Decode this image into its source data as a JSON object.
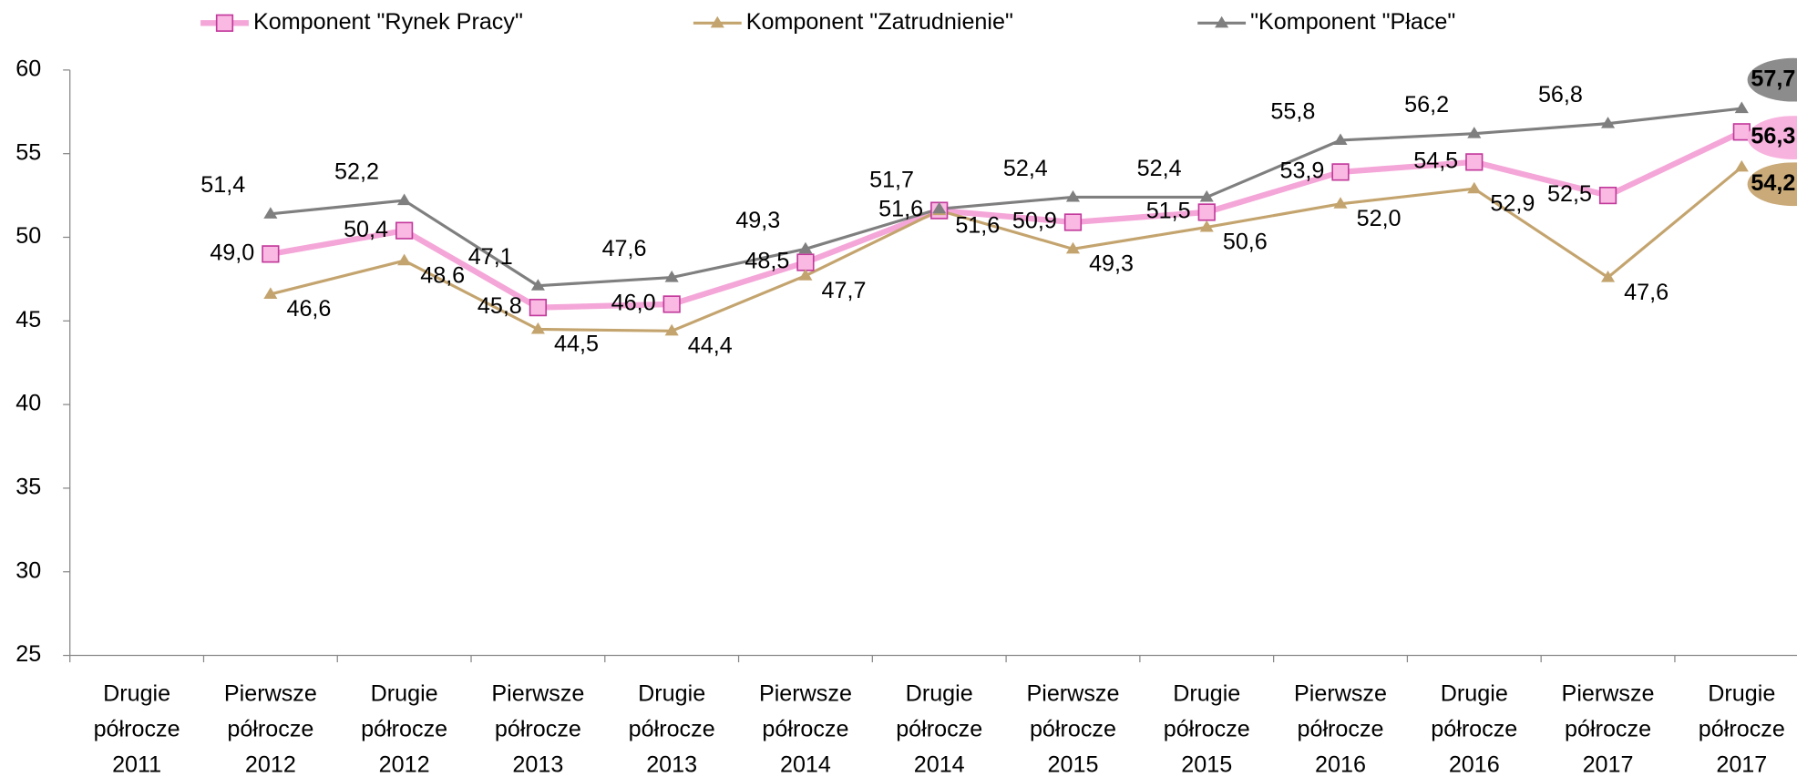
{
  "chart_data": {
    "type": "line",
    "categories": [
      [
        "Drugie",
        "półrocze",
        "2011"
      ],
      [
        "Pierwsze",
        "półrocze",
        "2012"
      ],
      [
        "Drugie",
        "półrocze",
        "2012"
      ],
      [
        "Pierwsze",
        "półrocze",
        "2013"
      ],
      [
        "Drugie",
        "półrocze",
        "2013"
      ],
      [
        "Pierwsze",
        "półrocze",
        "2014"
      ],
      [
        "Drugie",
        "półrocze",
        "2014"
      ],
      [
        "Pierwsze",
        "półrocze",
        "2015"
      ],
      [
        "Drugie",
        "półrocze",
        "2015"
      ],
      [
        "Pierwsze",
        "półrocze",
        "2016"
      ],
      [
        "Drugie",
        "półrocze",
        "2016"
      ],
      [
        "Pierwsze",
        "półrocze",
        "2017"
      ],
      [
        "Drugie",
        "półrocze",
        "2017"
      ]
    ],
    "series": [
      {
        "name": "Komponent \"Rynek Pracy\"",
        "color": "#f4a6d8",
        "marker": "square",
        "values": [
          null,
          49.0,
          50.4,
          45.8,
          46.0,
          48.5,
          51.6,
          50.9,
          51.5,
          53.9,
          54.5,
          52.5,
          56.3
        ],
        "value_labels": [
          null,
          "49,0",
          "50,4",
          "45,8",
          "46,0",
          "48,5",
          "51,6",
          "50,9",
          "51,5",
          "53,9",
          "54,5",
          "52,5",
          "56,3"
        ]
      },
      {
        "name": "Komponent \"Zatrudnienie\"",
        "color": "#c4a46e",
        "marker": "triangle",
        "values": [
          null,
          46.6,
          48.6,
          44.5,
          44.4,
          47.7,
          51.6,
          49.3,
          50.6,
          52.0,
          52.9,
          47.6,
          54.2
        ],
        "value_labels": [
          null,
          "46,6",
          "48,6",
          "44,5",
          "44,4",
          "47,7",
          "51,6",
          "49,3",
          "50,6",
          "52,0",
          "52,9",
          "47,6",
          "54,2"
        ]
      },
      {
        "name": "\"Komponent \"Płace\"",
        "color": "#7f7f7f",
        "marker": "triangle",
        "values": [
          null,
          51.4,
          52.2,
          47.1,
          47.6,
          49.3,
          51.7,
          52.4,
          52.4,
          55.8,
          56.2,
          56.8,
          57.7
        ],
        "value_labels": [
          null,
          "51,4",
          "52,2",
          "47,1",
          "47,6",
          "49,3",
          "51,7",
          "52,4",
          "52,4",
          "55,8",
          "56,2",
          "56,8",
          "57,7"
        ]
      }
    ],
    "ylim": [
      25,
      60
    ],
    "yticks": [
      25,
      30,
      35,
      40,
      45,
      50,
      55,
      60
    ],
    "grid": false,
    "legend": "top"
  }
}
